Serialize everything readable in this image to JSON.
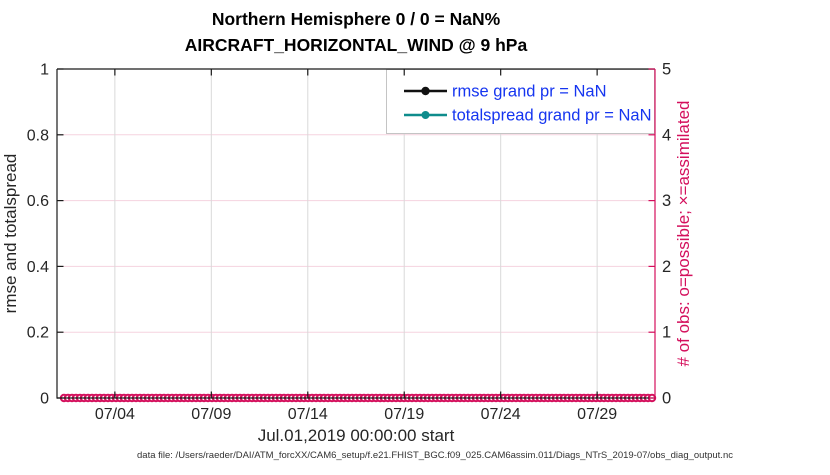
{
  "figure": {
    "title_line1": "Northern Hemisphere 0 / 0 = NaN%",
    "title_line2": "AIRCRAFT_HORIZONTAL_WIND @ 9 hPa",
    "caption": "data file: /Users/raeder/DAI/ATM_forcXX/CAM6_setup/f.e21.FHIST_BGC.f09_025.CAM6assim.011/Diags_NTrS_2019-07/obs_diag_output.nc"
  },
  "chart_data": {
    "type": "line",
    "title": "Northern Hemisphere 0 / 0 = NaN%",
    "subtitle": "AIRCRAFT_HORIZONTAL_WIND @ 9 hPa",
    "xlabel": "Jul.01,2019 00:00:00 start",
    "ylabel_left": "rmse and totalspread",
    "ylabel_right": "# of obs: o=possible; ×=assimilated",
    "x_axis": {
      "span_days": 31,
      "start": "Jul.01,2019 00:00:00",
      "tick_labels": [
        "07/04",
        "07/09",
        "07/14",
        "07/19",
        "07/24",
        "07/29"
      ],
      "tick_day_offsets": [
        3,
        8,
        13,
        18,
        23,
        28
      ]
    },
    "y_left": {
      "tick_labels": [
        "0",
        "0.2",
        "0.4",
        "0.6",
        "0.8",
        "1"
      ],
      "tick_values": [
        0,
        0.2,
        0.4,
        0.6,
        0.8,
        1
      ],
      "lim": [
        0,
        1
      ]
    },
    "y_right": {
      "tick_labels": [
        "0",
        "1",
        "2",
        "3",
        "4",
        "5"
      ],
      "tick_values": [
        0,
        1,
        2,
        3,
        4,
        5
      ],
      "lim": [
        0,
        5
      ]
    },
    "grid": true,
    "legend": {
      "position": "top-right",
      "entries": [
        {
          "label": "rmse grand pr = NaN",
          "color": "#111111",
          "marker": "filled-circle"
        },
        {
          "label": "totalspread grand pr = NaN",
          "color": "#0e8c8c",
          "marker": "filled-circle"
        }
      ]
    },
    "series": [
      {
        "name": "rmse grand pr = NaN",
        "color": "#111111",
        "values": "all NaN — no curve drawn"
      },
      {
        "name": "totalspread grand pr = NaN",
        "color": "#0e8c8c",
        "values": "all NaN — no curve drawn"
      },
      {
        "name": "# of obs possible (o)",
        "color": "#d40f5c",
        "marker": "o",
        "constant_value": 0,
        "note": "dense marker row at 0 across entire month"
      },
      {
        "name": "# of obs assimilated (×)",
        "color": "#d40f5c",
        "marker": "×",
        "constant_value": 0
      }
    ]
  },
  "colors": {
    "axis_black": "#1a1a1a",
    "axis_right_crimson": "#d40f5c",
    "marker_crimson": "#d40f5c",
    "series_teal": "#0e8c8c",
    "legend_text_blue": "#1535f0",
    "vgrid_gray": "#d9d9d9",
    "hgrid_pink": "#f5d3df",
    "legend_border": "#c4c4c4"
  }
}
